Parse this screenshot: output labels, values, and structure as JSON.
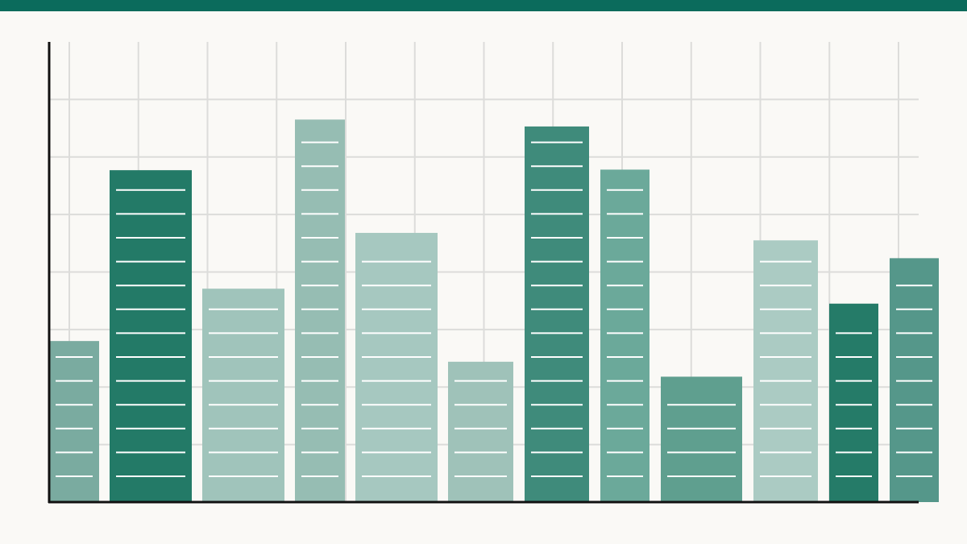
{
  "chart_data": {
    "type": "bar",
    "values": [
      2.8,
      5.77,
      3.71,
      6.65,
      4.68,
      2.44,
      6.53,
      5.78,
      2.18,
      4.55,
      3.45,
      4.24
    ],
    "colors": [
      "#7aaba0",
      "#237a67",
      "#a0c4bb",
      "#96bdb3",
      "#a6c8c0",
      "#9fc2b9",
      "#3f8b7b",
      "#6ba99a",
      "#5f9f8f",
      "#abcbc3",
      "#257b68",
      "#55978a"
    ],
    "ylim": [
      0,
      8
    ],
    "yticks": [
      1,
      2,
      3,
      4,
      5,
      6,
      7
    ],
    "grid": true
  }
}
